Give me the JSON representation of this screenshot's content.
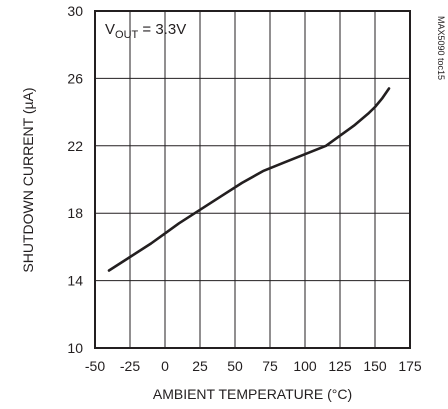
{
  "chart_data": {
    "type": "line",
    "title": "",
    "xlabel": "AMBIENT TEMPERATURE (°C)",
    "ylabel": "SHUTDOWN CURRENT (µA)",
    "xlim": [
      -50,
      175
    ],
    "ylim": [
      10,
      30
    ],
    "xticks": [
      -50,
      -25,
      0,
      25,
      50,
      75,
      100,
      125,
      150,
      175
    ],
    "yticks": [
      10,
      14,
      18,
      22,
      26,
      30
    ],
    "grid": true,
    "annotation": {
      "prefix": "V",
      "subscript": "OUT",
      "suffix": " = 3.3V"
    },
    "figure_code": "MAX5090 toc15",
    "series": [
      {
        "x": [
          -40,
          -25,
          -10,
          0,
          10,
          25,
          40,
          55,
          70,
          85,
          100,
          115,
          125,
          135,
          145,
          150,
          155,
          160
        ],
        "y": [
          14.6,
          15.4,
          16.2,
          16.8,
          17.4,
          18.2,
          19.0,
          19.8,
          20.5,
          21.0,
          21.5,
          22.0,
          22.6,
          23.2,
          23.9,
          24.3,
          24.8,
          25.4
        ]
      }
    ]
  }
}
